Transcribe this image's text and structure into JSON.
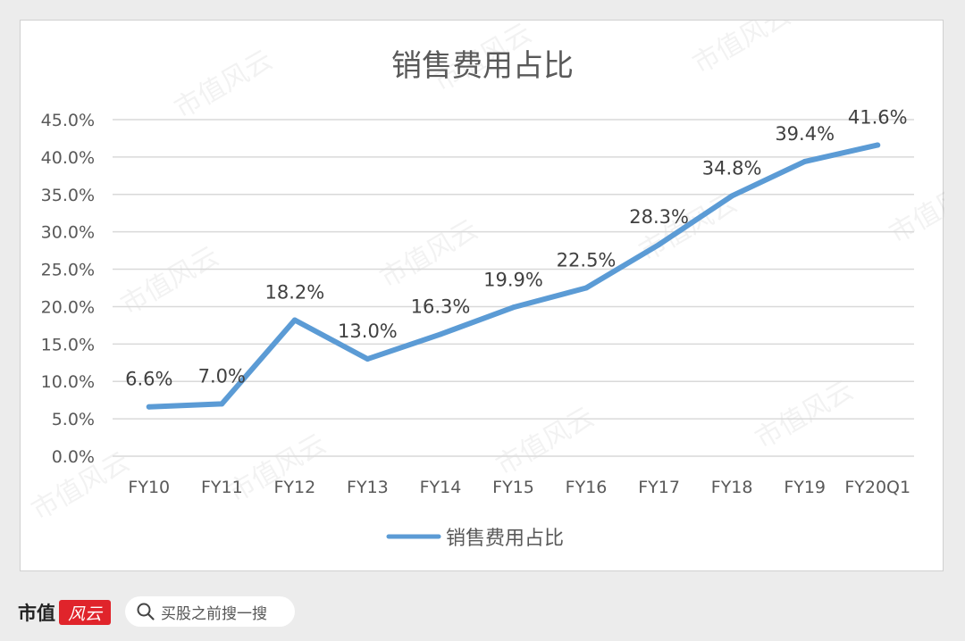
{
  "chart_data": {
    "type": "line",
    "title": "销售费用占比",
    "categories": [
      "FY10",
      "FY11",
      "FY12",
      "FY13",
      "FY14",
      "FY15",
      "FY16",
      "FY17",
      "FY18",
      "FY19",
      "FY20Q1"
    ],
    "series": [
      {
        "name": "销售费用占比",
        "values": [
          6.6,
          7.0,
          18.2,
          13.0,
          16.3,
          19.9,
          22.5,
          28.3,
          34.8,
          39.4,
          41.6
        ],
        "color": "#5b9bd5"
      }
    ],
    "data_labels": [
      "6.6%",
      "7.0%",
      "18.2%",
      "13.0%",
      "16.3%",
      "19.9%",
      "22.5%",
      "28.3%",
      "34.8%",
      "39.4%",
      "41.6%"
    ],
    "y_ticks": [
      "0.0%",
      "5.0%",
      "10.0%",
      "15.0%",
      "20.0%",
      "25.0%",
      "30.0%",
      "35.0%",
      "40.0%",
      "45.0%"
    ],
    "ylim": [
      0,
      45
    ],
    "grid": true,
    "legend_position": "bottom"
  },
  "watermark": {
    "text": "市值风云"
  },
  "footer": {
    "brand_name": "市值",
    "brand_seal": "风云",
    "search_label": "买股之前搜一搜",
    "brand_color": "#e0242b"
  }
}
